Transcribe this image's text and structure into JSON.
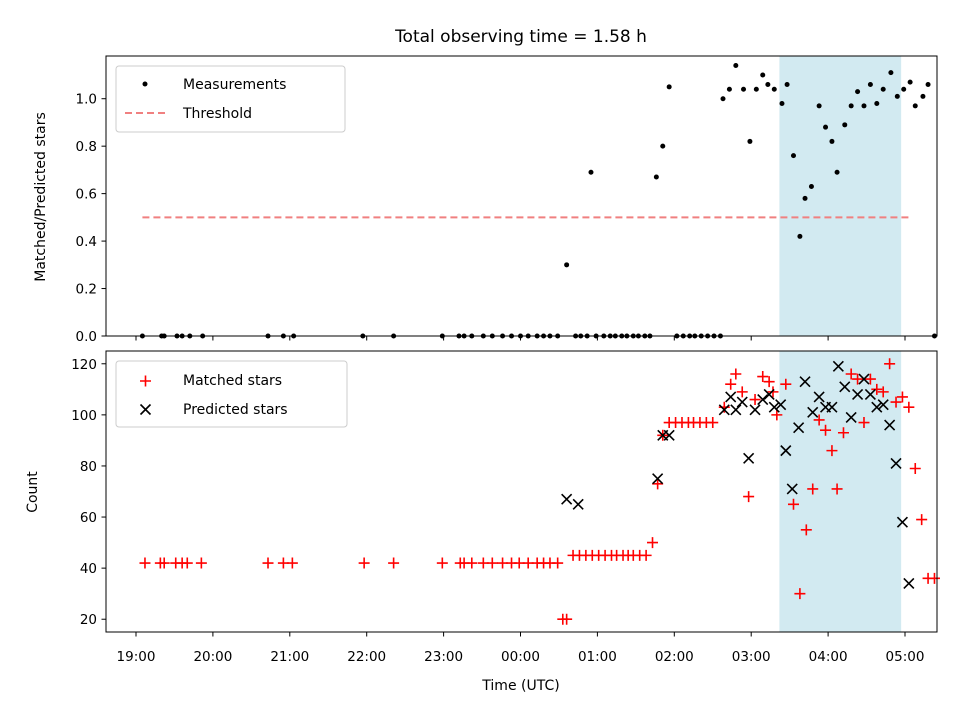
{
  "chart_data": [
    {
      "type": "scatter",
      "title": "Total observing time = 1.58 h",
      "xlabel": "",
      "ylabel": "Matched/Predicted stars",
      "ylim": [
        0,
        1.18
      ],
      "yticks": [
        "0.0",
        "0.2",
        "0.4",
        "0.6",
        "0.8",
        "1.0"
      ],
      "shaded_interval": [
        "03:22",
        "04:57"
      ],
      "shade_color": "#add8e6",
      "legend_location": "upper left",
      "series": [
        {
          "name": "Measurements",
          "color": "#000000",
          "marker": "dot",
          "points": [
            [
              "19:05",
              0.0
            ],
            [
              "19:20",
              0.0
            ],
            [
              "19:22",
              0.0
            ],
            [
              "19:32",
              0.0
            ],
            [
              "19:36",
              0.0
            ],
            [
              "19:42",
              0.0
            ],
            [
              "19:52",
              0.0
            ],
            [
              "20:43",
              0.0
            ],
            [
              "20:55",
              0.0
            ],
            [
              "21:03",
              0.0
            ],
            [
              "21:57",
              0.0
            ],
            [
              "22:21",
              0.0
            ],
            [
              "22:59",
              0.0
            ],
            [
              "23:12",
              0.0
            ],
            [
              "23:16",
              0.0
            ],
            [
              "23:22",
              0.0
            ],
            [
              "23:31",
              0.0
            ],
            [
              "23:38",
              0.0
            ],
            [
              "23:46",
              0.0
            ],
            [
              "23:53",
              0.0
            ],
            [
              "00:00",
              0.0
            ],
            [
              "00:06",
              0.0
            ],
            [
              "00:13",
              0.0
            ],
            [
              "00:18",
              0.0
            ],
            [
              "00:23",
              0.0
            ],
            [
              "00:29",
              0.0
            ],
            [
              "00:36",
              0.3
            ],
            [
              "00:43",
              0.0
            ],
            [
              "00:47",
              0.0
            ],
            [
              "00:52",
              0.0
            ],
            [
              "00:55",
              0.69
            ],
            [
              "00:59",
              0.0
            ],
            [
              "01:05",
              0.0
            ],
            [
              "01:10",
              0.0
            ],
            [
              "01:14",
              0.0
            ],
            [
              "01:19",
              0.0
            ],
            [
              "01:23",
              0.0
            ],
            [
              "01:28",
              0.0
            ],
            [
              "01:32",
              0.0
            ],
            [
              "01:37",
              0.0
            ],
            [
              "01:41",
              0.0
            ],
            [
              "01:46",
              0.67
            ],
            [
              "01:51",
              0.8
            ],
            [
              "01:56",
              1.05
            ],
            [
              "02:02",
              0.0
            ],
            [
              "02:07",
              0.0
            ],
            [
              "02:12",
              0.0
            ],
            [
              "02:16",
              0.0
            ],
            [
              "02:21",
              0.0
            ],
            [
              "02:26",
              0.0
            ],
            [
              "02:31",
              0.0
            ],
            [
              "02:36",
              0.0
            ],
            [
              "02:38",
              1.0
            ],
            [
              "02:43",
              1.04
            ],
            [
              "02:48",
              1.14
            ],
            [
              "02:54",
              1.04
            ],
            [
              "02:59",
              0.82
            ],
            [
              "03:04",
              1.04
            ],
            [
              "03:09",
              1.1
            ],
            [
              "03:13",
              1.06
            ],
            [
              "03:18",
              1.04
            ],
            [
              "03:24",
              0.98
            ],
            [
              "03:28",
              1.06
            ],
            [
              "03:33",
              0.76
            ],
            [
              "03:38",
              0.42
            ],
            [
              "03:42",
              0.58
            ],
            [
              "03:47",
              0.63
            ],
            [
              "03:53",
              0.97
            ],
            [
              "03:58",
              0.88
            ],
            [
              "04:03",
              0.82
            ],
            [
              "04:07",
              0.69
            ],
            [
              "04:13",
              0.89
            ],
            [
              "04:18",
              0.97
            ],
            [
              "04:23",
              1.03
            ],
            [
              "04:28",
              0.97
            ],
            [
              "04:33",
              1.06
            ],
            [
              "04:38",
              0.98
            ],
            [
              "04:43",
              1.04
            ],
            [
              "04:49",
              1.11
            ],
            [
              "04:54",
              1.01
            ],
            [
              "04:59",
              1.04
            ],
            [
              "05:04",
              1.07
            ],
            [
              "05:08",
              0.97
            ],
            [
              "05:14",
              1.01
            ],
            [
              "05:18",
              1.06
            ],
            [
              "05:23",
              0.0
            ]
          ]
        },
        {
          "name": "Threshold",
          "color": "#f08080",
          "line_style": "dashed",
          "points": [
            [
              "19:05",
              0.5
            ],
            [
              "05:05",
              0.5
            ]
          ]
        }
      ]
    },
    {
      "type": "scatter",
      "title": "",
      "xlabel": "Time (UTC)",
      "ylabel": "Count",
      "ylim": [
        15,
        125
      ],
      "yticks": [
        "20",
        "40",
        "60",
        "80",
        "100",
        "120"
      ],
      "xticks": [
        "19:00",
        "20:00",
        "21:00",
        "22:00",
        "23:00",
        "00:00",
        "01:00",
        "02:00",
        "03:00",
        "04:00",
        "05:00"
      ],
      "shaded_interval": [
        "03:22",
        "04:57"
      ],
      "shade_color": "#add8e6",
      "legend_location": "upper left",
      "series": [
        {
          "name": "Matched stars",
          "color": "#ff0000",
          "marker": "plus",
          "points": [
            [
              "19:07",
              42
            ],
            [
              "19:19",
              42
            ],
            [
              "19:22",
              42
            ],
            [
              "19:31",
              42
            ],
            [
              "19:36",
              42
            ],
            [
              "19:40",
              42
            ],
            [
              "19:51",
              42
            ],
            [
              "20:43",
              42
            ],
            [
              "20:55",
              42
            ],
            [
              "21:02",
              42
            ],
            [
              "21:58",
              42
            ],
            [
              "22:21",
              42
            ],
            [
              "22:59",
              42
            ],
            [
              "23:13",
              42
            ],
            [
              "23:16",
              42
            ],
            [
              "23:22",
              42
            ],
            [
              "23:31",
              42
            ],
            [
              "23:38",
              42
            ],
            [
              "23:46",
              42
            ],
            [
              "23:53",
              42
            ],
            [
              "23:59",
              42
            ],
            [
              "00:06",
              42
            ],
            [
              "00:13",
              42
            ],
            [
              "00:18",
              42
            ],
            [
              "00:23",
              42
            ],
            [
              "00:29",
              42
            ],
            [
              "00:33",
              20
            ],
            [
              "00:36",
              20
            ],
            [
              "00:41",
              45
            ],
            [
              "00:46",
              45
            ],
            [
              "00:51",
              45
            ],
            [
              "00:56",
              45
            ],
            [
              "01:01",
              45
            ],
            [
              "01:06",
              45
            ],
            [
              "01:11",
              45
            ],
            [
              "01:15",
              45
            ],
            [
              "01:20",
              45
            ],
            [
              "01:24",
              45
            ],
            [
              "01:28",
              45
            ],
            [
              "01:33",
              45
            ],
            [
              "01:38",
              45
            ],
            [
              "01:43",
              50
            ],
            [
              "01:47",
              73
            ],
            [
              "01:51",
              92
            ],
            [
              "01:56",
              97
            ],
            [
              "02:01",
              97
            ],
            [
              "02:06",
              97
            ],
            [
              "02:11",
              97
            ],
            [
              "02:15",
              97
            ],
            [
              "02:20",
              97
            ],
            [
              "02:25",
              97
            ],
            [
              "02:30",
              97
            ],
            [
              "02:39",
              103
            ],
            [
              "02:44",
              112
            ],
            [
              "02:48",
              116
            ],
            [
              "02:53",
              109
            ],
            [
              "02:58",
              68
            ],
            [
              "03:03",
              106
            ],
            [
              "03:09",
              115
            ],
            [
              "03:14",
              113
            ],
            [
              "03:17",
              109
            ],
            [
              "03:20",
              100
            ],
            [
              "03:27",
              112
            ],
            [
              "03:33",
              65
            ],
            [
              "03:38",
              30
            ],
            [
              "03:43",
              55
            ],
            [
              "03:48",
              71
            ],
            [
              "03:53",
              98
            ],
            [
              "03:58",
              94
            ],
            [
              "04:03",
              86
            ],
            [
              "04:07",
              71
            ],
            [
              "04:12",
              93
            ],
            [
              "04:18",
              116
            ],
            [
              "04:23",
              114
            ],
            [
              "04:28",
              97
            ],
            [
              "04:33",
              114
            ],
            [
              "04:38",
              110
            ],
            [
              "04:43",
              109
            ],
            [
              "04:48",
              120
            ],
            [
              "04:53",
              105
            ],
            [
              "04:58",
              107
            ],
            [
              "05:03",
              103
            ],
            [
              "05:08",
              79
            ],
            [
              "05:13",
              59
            ],
            [
              "05:18",
              36
            ],
            [
              "05:23",
              36
            ]
          ]
        },
        {
          "name": "Predicted stars",
          "color": "#000000",
          "marker": "x",
          "points": [
            [
              "00:36",
              67
            ],
            [
              "00:45",
              65
            ],
            [
              "01:47",
              75
            ],
            [
              "01:51",
              92
            ],
            [
              "01:56",
              92
            ],
            [
              "02:39",
              102
            ],
            [
              "02:44",
              107
            ],
            [
              "02:48",
              102
            ],
            [
              "02:53",
              105
            ],
            [
              "02:58",
              83
            ],
            [
              "03:03",
              102
            ],
            [
              "03:09",
              106
            ],
            [
              "03:14",
              108
            ],
            [
              "03:18",
              103
            ],
            [
              "03:23",
              104
            ],
            [
              "03:27",
              86
            ],
            [
              "03:32",
              71
            ],
            [
              "03:37",
              95
            ],
            [
              "03:42",
              113
            ],
            [
              "03:48",
              101
            ],
            [
              "03:53",
              107
            ],
            [
              "03:58",
              103
            ],
            [
              "04:03",
              103
            ],
            [
              "04:08",
              119
            ],
            [
              "04:13",
              111
            ],
            [
              "04:18",
              99
            ],
            [
              "04:23",
              108
            ],
            [
              "04:28",
              114
            ],
            [
              "04:33",
              108
            ],
            [
              "04:38",
              103
            ],
            [
              "04:43",
              104
            ],
            [
              "04:48",
              96
            ],
            [
              "04:53",
              81
            ],
            [
              "04:58",
              58
            ],
            [
              "05:03",
              34
            ]
          ]
        }
      ]
    }
  ]
}
